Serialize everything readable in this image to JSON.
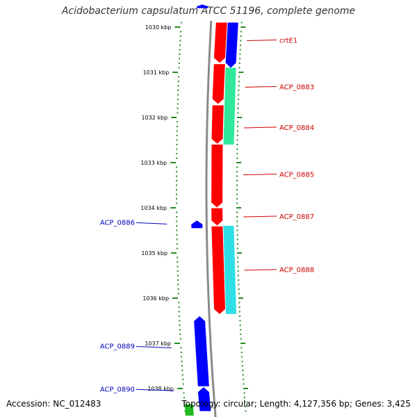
{
  "title": "Acidobacterium capsulatum ATCC 51196, complete genome",
  "footer": {
    "accession": "Accession: NC_012483",
    "stats": "Topology: circular; Length: 4,127,356 bp; Genes: 3,425"
  },
  "colors": {
    "backbone": "#8a8a8a",
    "tick": "#228B22",
    "forward_label": "#cc0000",
    "reverse_label": "#0000bb",
    "cds_forward": "#ff0000",
    "cds_reverse": "#0000ff",
    "rna_forward": "#2fe89a",
    "rna_reverse": "#2ee0e6",
    "green_feature": "#22bb22"
  },
  "ruler": {
    "unit": "kbp",
    "major_ticks": [
      {
        "kbp": 1030,
        "label": "1030 kbp"
      },
      {
        "kbp": 1031,
        "label": "1031 kbp"
      },
      {
        "kbp": 1032,
        "label": "1032 kbp"
      },
      {
        "kbp": 1033,
        "label": "1033 kbp"
      },
      {
        "kbp": 1034,
        "label": "1034 kbp"
      },
      {
        "kbp": 1035,
        "label": "1035 kbp"
      },
      {
        "kbp": 1036,
        "label": "1036 kbp"
      },
      {
        "kbp": 1037,
        "label": "1037 kbp"
      },
      {
        "kbp": 1038,
        "label": "1038 kbp"
      }
    ]
  },
  "features": [
    {
      "track": "forward",
      "kind": "cds",
      "start": 1029.9,
      "end": 1030.79,
      "strand": "+"
    },
    {
      "track": "forward",
      "kind": "cds",
      "start": 1030.82,
      "end": 1031.7,
      "strand": "+"
    },
    {
      "track": "forward",
      "kind": "cds",
      "start": 1031.73,
      "end": 1032.58,
      "strand": "+"
    },
    {
      "track": "forward",
      "kind": "cds",
      "start": 1032.6,
      "end": 1033.99,
      "strand": "+"
    },
    {
      "track": "forward",
      "kind": "cds",
      "start": 1034.01,
      "end": 1034.39,
      "strand": "+"
    },
    {
      "track": "forward",
      "kind": "cds",
      "start": 1034.41,
      "end": 1036.35,
      "strand": "+"
    },
    {
      "track": "forward-rna",
      "kind": "cds_blue",
      "start": 1029.9,
      "end": 1030.9,
      "strand": "+"
    },
    {
      "track": "forward-rna",
      "kind": "rna_forward",
      "start": 1030.9,
      "end": 1032.6,
      "strand": "+"
    },
    {
      "track": "forward-rna",
      "kind": "rna_reverse",
      "start": 1034.4,
      "end": 1036.35,
      "strand": "+"
    },
    {
      "track": "reverse",
      "kind": "cds",
      "start": 1034.28,
      "end": 1034.45,
      "strand": "-"
    },
    {
      "track": "reverse",
      "kind": "cds",
      "start": 1036.4,
      "end": 1037.95,
      "strand": "-"
    },
    {
      "track": "reverse",
      "kind": "cds",
      "start": 1037.97,
      "end": 1038.5,
      "strand": "-"
    },
    {
      "track": "reverse",
      "kind": "cds",
      "start": 1029.5,
      "end": 1029.58,
      "strand": "-"
    },
    {
      "track": "reverse-green",
      "kind": "green",
      "start": 1038.35,
      "end": 1038.6,
      "strand": "-"
    }
  ],
  "labels": [
    {
      "text": "crtE1",
      "side": "forward",
      "kbp": 1030.3
    },
    {
      "text": "ACP_0883",
      "side": "forward",
      "kbp": 1031.33
    },
    {
      "text": "ACP_0884",
      "side": "forward",
      "kbp": 1032.23
    },
    {
      "text": "ACP_0885",
      "side": "forward",
      "kbp": 1033.27
    },
    {
      "text": "ACP_0887",
      "side": "forward",
      "kbp": 1034.2
    },
    {
      "text": "ACP_0888",
      "side": "forward",
      "kbp": 1035.38
    },
    {
      "text": "ACP_0886",
      "side": "reverse",
      "kbp": 1034.36
    },
    {
      "text": "ACP_0889",
      "side": "reverse",
      "kbp": 1037.1
    },
    {
      "text": "ACP_0890",
      "side": "reverse",
      "kbp": 1038.05
    }
  ]
}
